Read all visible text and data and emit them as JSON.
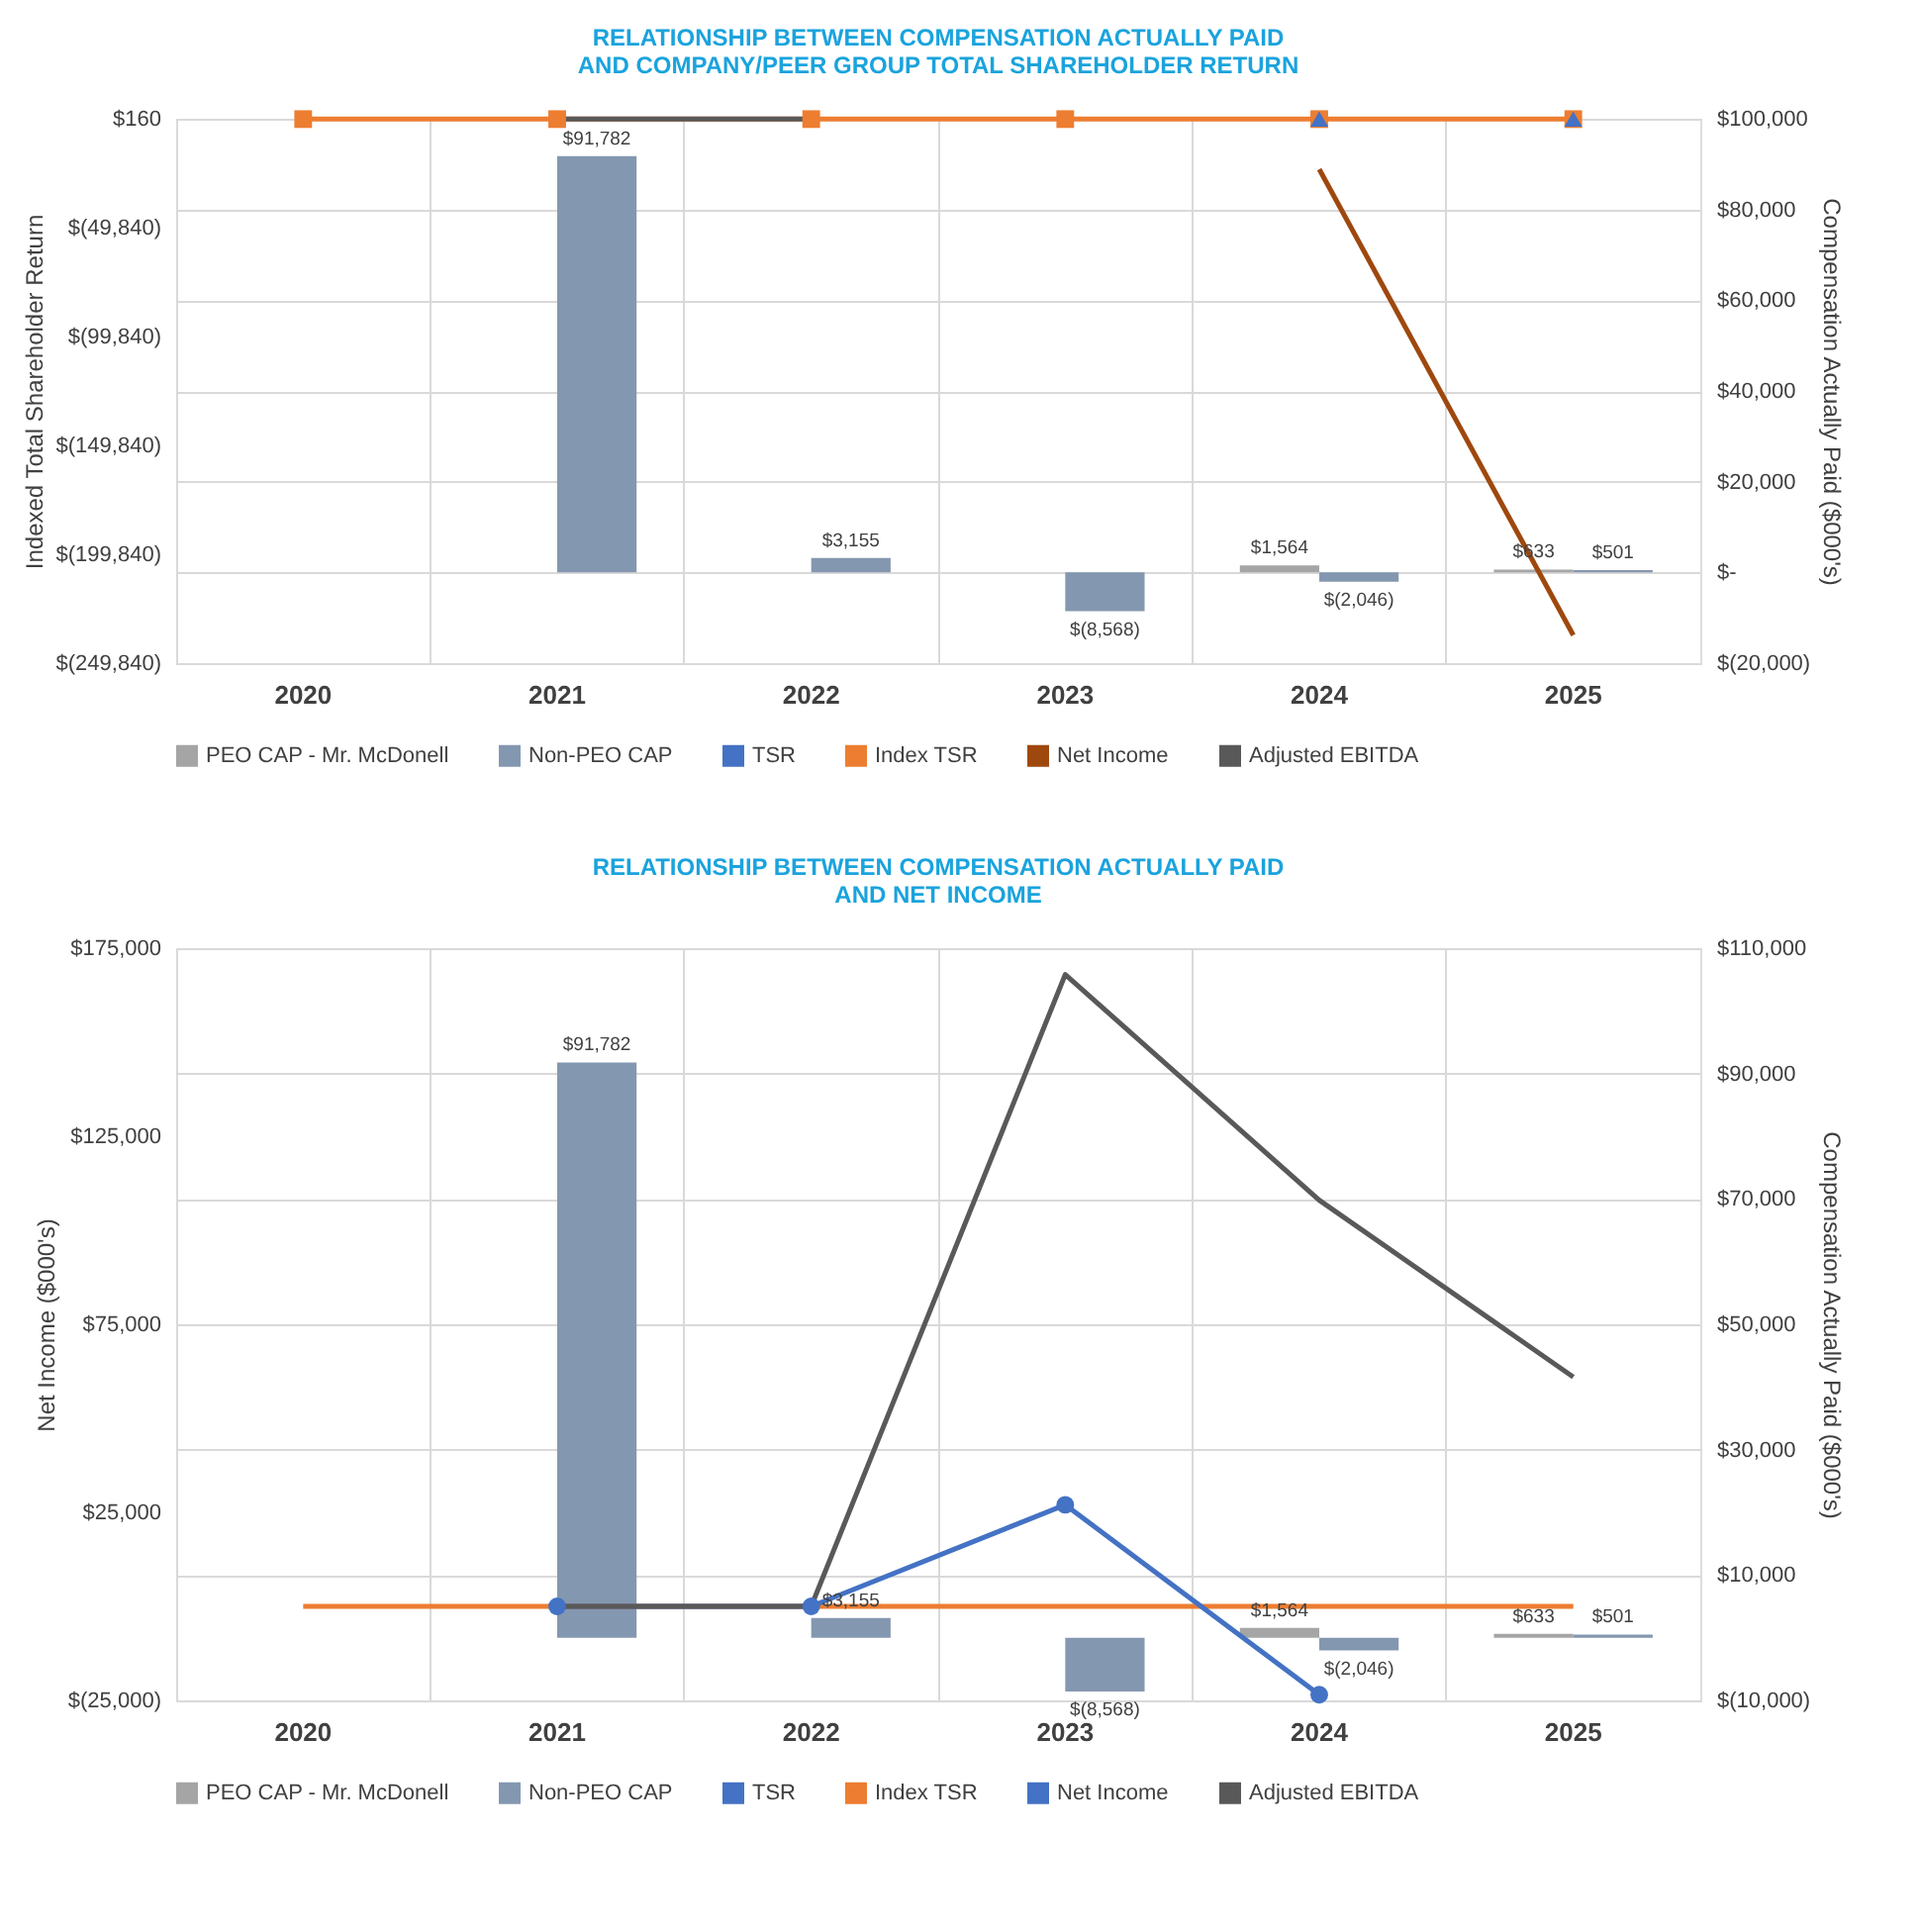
{
  "chart_data": [
    {
      "type": "bar",
      "title": "RELATIONSHIP BETWEEN COMPENSATION ACTUALLY PAID AND COMPANY/PEER GROUP TOTAL SHAREHOLDER RETURN",
      "categories": [
        "2020",
        "2021",
        "2022",
        "2023",
        "2024",
        "2025"
      ],
      "ylabel": "Indexed Total Shareholder Return",
      "y2label": "Compensation Actually Paid ($000's)",
      "ylim": [
        -249840,
        160
      ],
      "yticks": [
        {
          "value": -249840,
          "label": "$(249,840)"
        },
        {
          "value": -199840,
          "label": "$(199,840)"
        },
        {
          "value": -149840,
          "label": "$(149,840)"
        },
        {
          "value": -99840,
          "label": "$(99,840)"
        },
        {
          "value": -49840,
          "label": "$(49,840)"
        },
        {
          "value": 160,
          "label": "$160"
        }
      ],
      "y2lim": [
        -20000,
        100000
      ],
      "y2ticks": [
        {
          "value": -20000,
          "label": "$(20,000)"
        },
        {
          "value": 0,
          "label": "$-"
        },
        {
          "value": 20000,
          "label": "$20,000"
        },
        {
          "value": 40000,
          "label": "$40,000"
        },
        {
          "value": 60000,
          "label": "$60,000"
        },
        {
          "value": 80000,
          "label": "$80,000"
        },
        {
          "value": 100000,
          "label": "$100,000"
        }
      ],
      "grid": true,
      "legend": "bottom",
      "series": [
        {
          "name": "PEO CAP - Mr. McDonell",
          "type": "bar",
          "axis": "y2",
          "color": "#a5a5a5",
          "values": [
            null,
            null,
            null,
            null,
            1564,
            633
          ],
          "value_labels": [
            null,
            null,
            null,
            null,
            "$1,564",
            "$633"
          ]
        },
        {
          "name": "Non-PEO CAP",
          "type": "bar",
          "axis": "y2",
          "color": "#8497b0",
          "values": [
            null,
            91782,
            3155,
            -8568,
            -2046,
            501
          ],
          "value_labels": [
            null,
            "$91,782",
            "$3,155",
            "$(8,568)",
            "$(2,046)",
            "$501"
          ]
        },
        {
          "name": "TSR",
          "type": "scatter",
          "axis": "y",
          "color": "#4472c4",
          "marker": "triangle",
          "values": [
            null,
            null,
            null,
            null,
            0,
            0
          ]
        },
        {
          "name": "Index TSR",
          "type": "line",
          "axis": "y",
          "color": "#ed7d31",
          "marker": "square",
          "values": [
            0,
            0,
            0,
            0,
            0,
            0
          ]
        },
        {
          "name": "Net Income",
          "type": "line",
          "axis": "y",
          "color": "#9e480e",
          "values": [
            null,
            null,
            null,
            null,
            -23000,
            -237000
          ]
        },
        {
          "name": "Adjusted EBITDA",
          "type": "line",
          "axis": "y",
          "color": "#595959",
          "values": [
            null,
            0,
            0,
            null,
            null,
            null
          ]
        }
      ]
    },
    {
      "type": "bar",
      "title": "RELATIONSHIP BETWEEN COMPENSATION ACTUALLY PAID AND NET INCOME",
      "categories": [
        "2020",
        "2021",
        "2022",
        "2023",
        "2024",
        "2025"
      ],
      "ylabel": "Net Income ($000's)",
      "y2label": "Compensation Actually Paid ($000's)",
      "ylim": [
        -25000,
        175000
      ],
      "yticks": [
        {
          "value": -25000,
          "label": "$(25,000)"
        },
        {
          "value": 25000,
          "label": "$25,000"
        },
        {
          "value": 75000,
          "label": "$75,000"
        },
        {
          "value": 125000,
          "label": "$125,000"
        },
        {
          "value": 175000,
          "label": "$175,000"
        }
      ],
      "y2lim": [
        -10000,
        110000
      ],
      "y2ticks": [
        {
          "value": -10000,
          "label": "$(10,000)"
        },
        {
          "value": 10000,
          "label": "$10,000"
        },
        {
          "value": 30000,
          "label": "$30,000"
        },
        {
          "value": 50000,
          "label": "$50,000"
        },
        {
          "value": 70000,
          "label": "$70,000"
        },
        {
          "value": 90000,
          "label": "$90,000"
        },
        {
          "value": 110000,
          "label": "$110,000"
        }
      ],
      "grid": true,
      "legend": "bottom",
      "series": [
        {
          "name": "PEO CAP - Mr. McDonell",
          "type": "bar",
          "axis": "y2",
          "color": "#a5a5a5",
          "values": [
            null,
            null,
            null,
            null,
            1564,
            633
          ],
          "value_labels": [
            null,
            null,
            null,
            null,
            "$1,564",
            "$633"
          ]
        },
        {
          "name": "Non-PEO CAP",
          "type": "bar",
          "axis": "y2",
          "color": "#8497b0",
          "values": [
            null,
            91782,
            3155,
            -8568,
            -2046,
            501
          ],
          "value_labels": [
            null,
            "$91,782",
            "$3,155",
            "$(8,568)",
            "$(2,046)",
            "$501"
          ]
        },
        {
          "name": "TSR",
          "type": "line",
          "axis": "y",
          "color": "#4472c4",
          "values": [
            null,
            null,
            null,
            null,
            null,
            null
          ]
        },
        {
          "name": "Index TSR",
          "type": "line",
          "axis": "y",
          "color": "#ed7d31",
          "values": [
            0,
            0,
            0,
            0,
            0,
            0
          ]
        },
        {
          "name": "Net Income",
          "type": "line",
          "axis": "y",
          "color": "#4472c4",
          "marker": "circle",
          "values": [
            null,
            0,
            0,
            27000,
            -23500,
            null
          ]
        },
        {
          "name": "Adjusted EBITDA",
          "type": "line",
          "axis": "y",
          "color": "#595959",
          "values": [
            null,
            0,
            0,
            168000,
            108000,
            61000
          ]
        }
      ]
    }
  ]
}
